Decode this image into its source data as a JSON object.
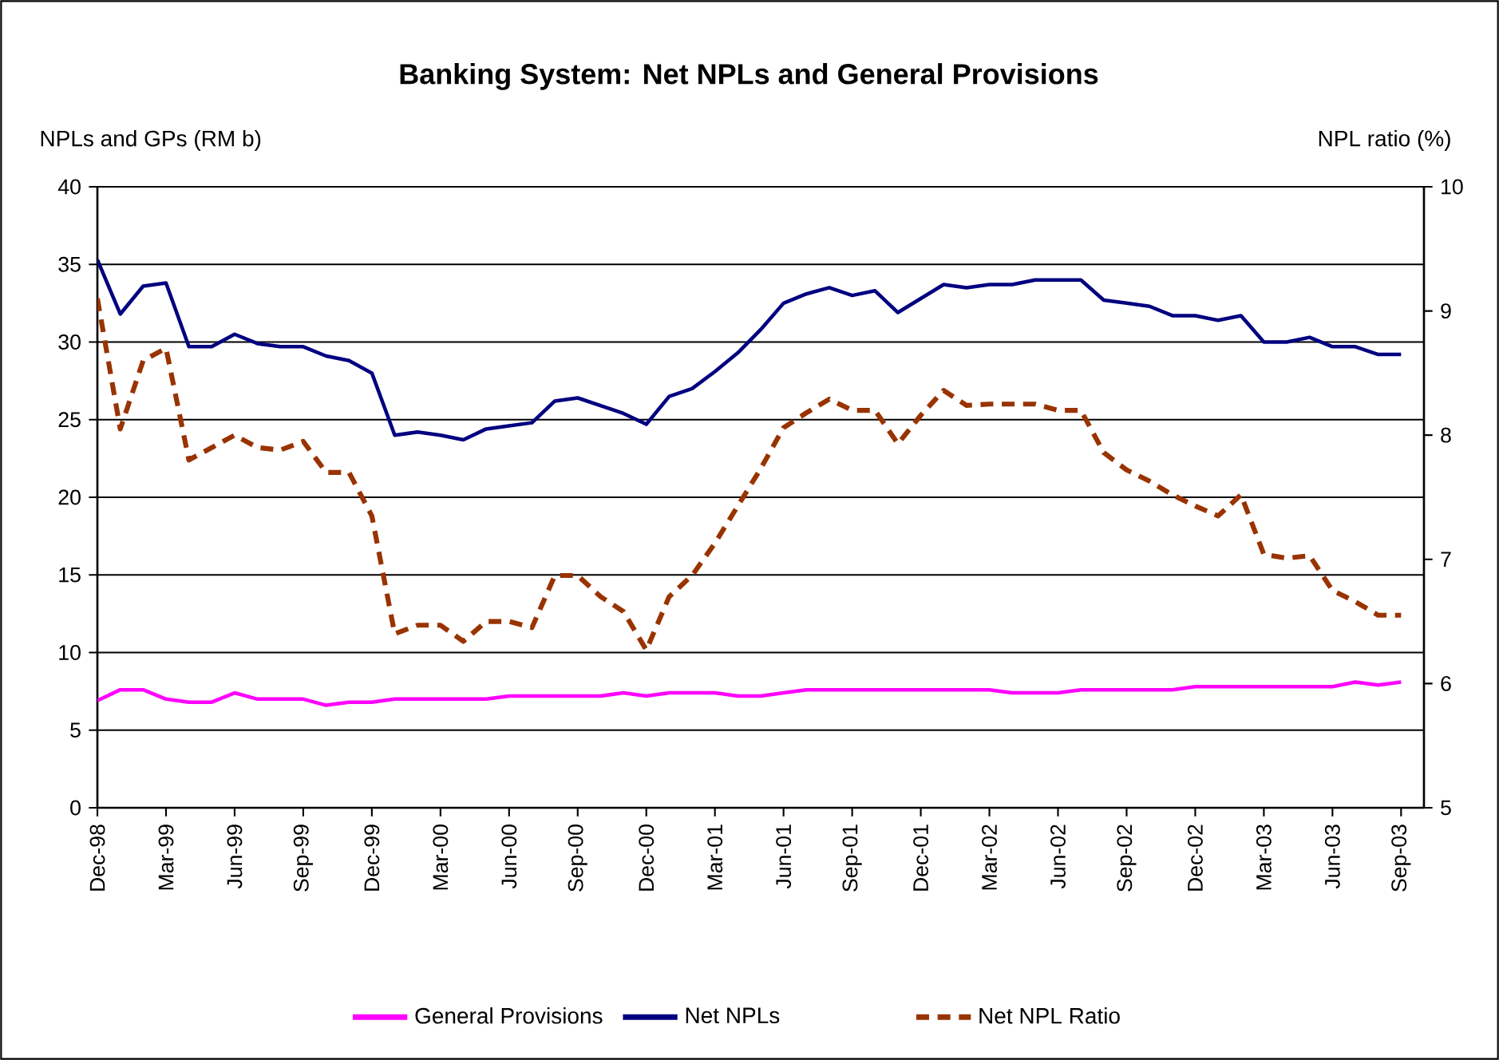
{
  "chart_data": {
    "type": "line",
    "title": "Banking System: Net NPLs and General Provisions",
    "ylabel": "NPLs and GPs (RM b)",
    "y2label": "NPL ratio (%)",
    "categories": [
      "Dec-98",
      null,
      null,
      "Mar-99",
      null,
      null,
      "Jun-99",
      null,
      null,
      "Sep-99",
      null,
      null,
      "Dec-99",
      null,
      null,
      "Mar-00",
      null,
      null,
      "Jun-00",
      null,
      null,
      "Sep-00",
      null,
      null,
      "Dec-00",
      null,
      null,
      "Mar-01",
      null,
      null,
      "Jun-01",
      null,
      null,
      "Sep-01",
      null,
      null,
      "Dec-01",
      null,
      null,
      "Mar-02",
      null,
      null,
      "Jun-02",
      null,
      null,
      "Sep-02",
      null,
      null,
      "Dec-02",
      null,
      null,
      "Mar-03",
      null,
      null,
      "Jun-03",
      null,
      null,
      "Sep-03"
    ],
    "series": [
      {
        "name": "General Provisions",
        "color": "#ff00ff",
        "line_style": "solid",
        "values": [
          6.9,
          7.6,
          7.6,
          7.0,
          6.8,
          6.8,
          7.4,
          7.0,
          7.0,
          7.0,
          6.6,
          6.8,
          6.8,
          7.0,
          7.0,
          7.0,
          7.0,
          7.0,
          7.2,
          7.2,
          7.2,
          7.2,
          7.2,
          7.4,
          7.2,
          7.4,
          7.4,
          7.4,
          7.2,
          7.2,
          7.4,
          7.6,
          7.6,
          7.6,
          7.6,
          7.6,
          7.6,
          7.6,
          7.6,
          7.6,
          7.4,
          7.4,
          7.4,
          7.6,
          7.6,
          7.6,
          7.6,
          7.6,
          7.8,
          7.8,
          7.8,
          7.8,
          7.8,
          7.8,
          7.8,
          8.1,
          7.9,
          8.1
        ]
      },
      {
        "name": "Net NPLs",
        "color": "#000080",
        "line_style": "solid",
        "values": [
          35.3,
          31.8,
          33.6,
          33.8,
          29.7,
          29.7,
          30.5,
          29.9,
          29.7,
          29.7,
          29.1,
          28.8,
          28.0,
          24.0,
          24.2,
          24.0,
          23.7,
          24.4,
          24.6,
          24.8,
          26.2,
          26.4,
          25.9,
          25.4,
          24.7,
          26.5,
          27.0,
          28.1,
          29.3,
          30.8,
          32.5,
          33.1,
          33.5,
          33.0,
          33.3,
          31.9,
          32.8,
          33.7,
          33.5,
          33.7,
          33.7,
          34.0,
          34.0,
          34.0,
          32.7,
          32.5,
          32.3,
          31.7,
          31.7,
          31.4,
          31.7,
          30.0,
          30.0,
          30.3,
          29.7,
          29.7,
          29.2,
          29.2
        ]
      },
      {
        "name": "Net NPL Ratio",
        "color": "#993300",
        "line_style": "dashed",
        "axis": "y2",
        "values": [
          9.1,
          8.05,
          8.6,
          8.7,
          7.8,
          7.9,
          8.0,
          7.9,
          7.88,
          7.95,
          7.7,
          7.7,
          7.35,
          6.4,
          6.47,
          6.47,
          6.34,
          6.5,
          6.5,
          6.45,
          6.87,
          6.87,
          6.7,
          6.58,
          6.27,
          6.7,
          6.87,
          7.13,
          7.43,
          7.73,
          8.06,
          8.18,
          8.29,
          8.2,
          8.2,
          7.93,
          8.16,
          8.36,
          8.24,
          8.25,
          8.25,
          8.25,
          8.2,
          8.2,
          7.86,
          7.72,
          7.63,
          7.52,
          7.43,
          7.35,
          7.52,
          7.04,
          7.01,
          7.03,
          6.75,
          6.66,
          6.55,
          6.55
        ]
      }
    ],
    "ylim": [
      0,
      40
    ],
    "yticks": [
      0,
      5,
      10,
      15,
      20,
      25,
      30,
      35,
      40
    ],
    "y2lim": [
      5,
      10
    ],
    "y2ticks": [
      5,
      6,
      7,
      8,
      9,
      10
    ],
    "grid": "y",
    "legend": "bottom"
  }
}
